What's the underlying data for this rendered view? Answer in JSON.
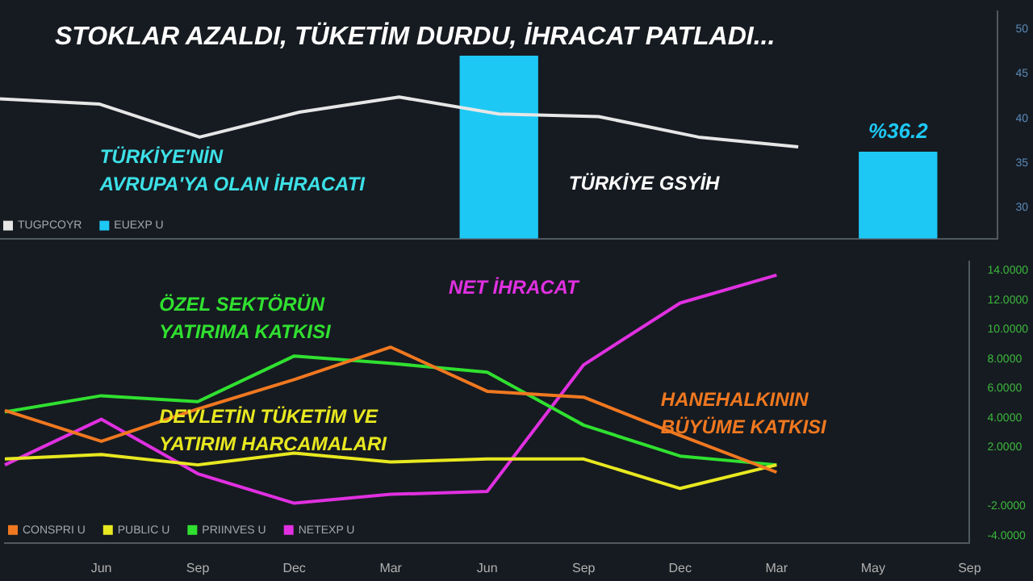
{
  "chart_data": [
    {
      "type": "line",
      "title": "STOKLAR AZALDI, TÜKETİM DURDU, İHRACAT PATLADI...",
      "ylim": [
        26.5,
        52
      ],
      "yticks": [
        30,
        35,
        40,
        45,
        50
      ],
      "tick_labels": "y",
      "legend": "bottom left",
      "grid": false,
      "annotations": [
        "TÜRKİYE'NİN AVRUPA'YA OLAN İHRACATI",
        "TÜRKİYE GSYİH"
      ],
      "series": [
        {
          "name": "TUGPCOYR",
          "color": "#e6e6e6",
          "values": [
            42.2,
            41.6,
            37.9,
            40.7,
            42.4,
            40.5,
            40.2,
            37.9,
            36.8,
            null,
            null
          ]
        },
        {
          "name": "EUEXP U",
          "type": "bar",
          "color": "#1ec8f5",
          "values": [
            null,
            null,
            null,
            null,
            null,
            47,
            null,
            null,
            null,
            36.2,
            null
          ],
          "value_labels": [
            null,
            null,
            null,
            null,
            null,
            null,
            null,
            null,
            null,
            "%36.2",
            null
          ]
        }
      ]
    },
    {
      "type": "line",
      "categories": [
        null,
        "Jun",
        "Sep",
        "Dec",
        "Mar",
        "Jun",
        "Sep",
        "Dec",
        "Mar",
        "May",
        "Sep"
      ],
      "ylim": [
        -4.5,
        14.6
      ],
      "yticks": [
        {
          "value": -4,
          "label": "-4.0000"
        },
        {
          "value": -2,
          "label": "-2.0000"
        },
        {
          "value": 2,
          "label": "2.0000"
        },
        {
          "value": 4,
          "label": "4.0000"
        },
        {
          "value": 6,
          "label": "6.0000"
        },
        {
          "value": 8,
          "label": "8.0000"
        },
        {
          "value": 10,
          "label": "10.0000"
        },
        {
          "value": 12,
          "label": "12.0000"
        },
        {
          "value": 14,
          "label": "14.0000"
        }
      ],
      "legend": "bottom left",
      "grid": false,
      "annotations": [
        "ÖZEL SEKTÖRÜN YATIRIMA KATKISI",
        "NET İHRACAT",
        "DEVLETİN TÜKETİM VE YATIRIM HARCAMALARI",
        "HANEHALKININ BÜYÜME KATKISI"
      ],
      "series": [
        {
          "name": "CONSPRI U",
          "color": "#f07820",
          "values": [
            4.5,
            2.4,
            4.6,
            6.6,
            8.8,
            5.8,
            5.4,
            2.8,
            0.3,
            null,
            null
          ]
        },
        {
          "name": "PUBLIC U",
          "color": "#e8e820",
          "values": [
            1.2,
            1.5,
            0.8,
            1.6,
            1.0,
            1.2,
            1.2,
            -0.8,
            0.8,
            null,
            null
          ]
        },
        {
          "name": "PRIINVES U",
          "color": "#30e030",
          "values": [
            4.4,
            5.5,
            5.1,
            8.2,
            7.7,
            7.1,
            3.5,
            1.4,
            0.8,
            null,
            null
          ]
        },
        {
          "name": "NETEXP U",
          "color": "#e030e0",
          "values": [
            0.8,
            3.9,
            0.2,
            -1.8,
            -1.2,
            -1.0,
            7.6,
            11.8,
            13.7,
            null,
            null
          ]
        }
      ]
    }
  ]
}
